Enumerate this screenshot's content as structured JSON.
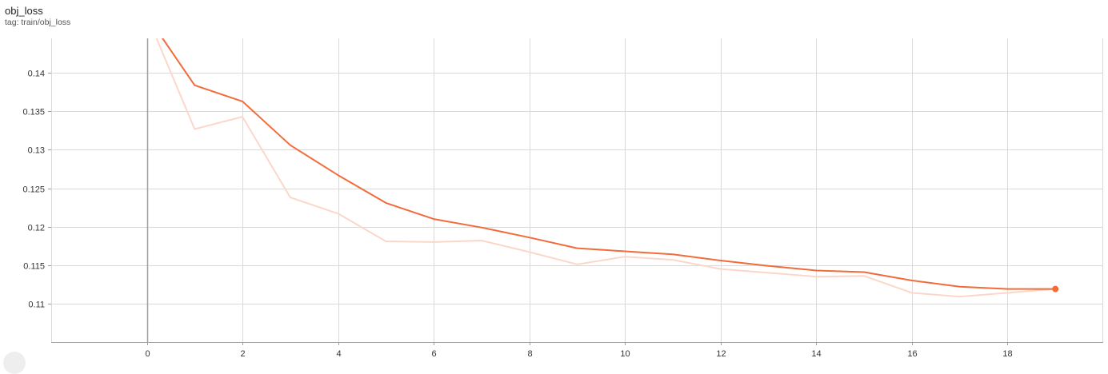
{
  "card": {
    "title": "obj_loss",
    "tag": "tag: train/obj_loss"
  },
  "colors": {
    "smoothed": "#f26b3a",
    "raw": "#fcd7c9",
    "grid": "#d9d9d9",
    "zero_axis": "#9e9e9e"
  },
  "chart_data": {
    "type": "line",
    "title": "obj_loss",
    "xlabel": "",
    "ylabel": "",
    "xlim": [
      -2,
      20
    ],
    "ylim": [
      0.105,
      0.1445
    ],
    "x_ticks": [
      0,
      2,
      4,
      6,
      8,
      10,
      12,
      14,
      16,
      18
    ],
    "y_ticks": [
      0.11,
      0.115,
      0.12,
      0.125,
      0.13,
      0.135,
      0.14
    ],
    "y_tick_labels": [
      "0.11",
      "0.115",
      "0.12",
      "0.125",
      "0.13",
      "0.135",
      "0.14"
    ],
    "grid": true,
    "series": [
      {
        "role": "raw",
        "x": [
          0,
          1,
          2,
          3,
          4,
          5,
          6,
          7,
          8,
          9,
          10,
          11,
          12,
          13,
          14,
          15,
          16,
          17,
          18,
          19
        ],
        "y": [
          0.1475,
          0.1327,
          0.1343,
          0.1238,
          0.1217,
          0.1181,
          0.118,
          0.1182,
          0.1167,
          0.1151,
          0.1161,
          0.1157,
          0.1145,
          0.114,
          0.1135,
          0.1136,
          0.1114,
          0.1109,
          0.1114,
          0.1119
        ]
      },
      {
        "role": "smoothed",
        "x": [
          0,
          1,
          2,
          3,
          4,
          5,
          6,
          7,
          8,
          9,
          10,
          11,
          12,
          13,
          14,
          15,
          16,
          17,
          18,
          19
        ],
        "y": [
          0.1475,
          0.1384,
          0.1363,
          0.1306,
          0.1267,
          0.1231,
          0.121,
          0.1199,
          0.1186,
          0.1172,
          0.1168,
          0.1164,
          0.1156,
          0.1149,
          0.1143,
          0.1141,
          0.113,
          0.1122,
          0.1119,
          0.1119
        ]
      }
    ]
  }
}
